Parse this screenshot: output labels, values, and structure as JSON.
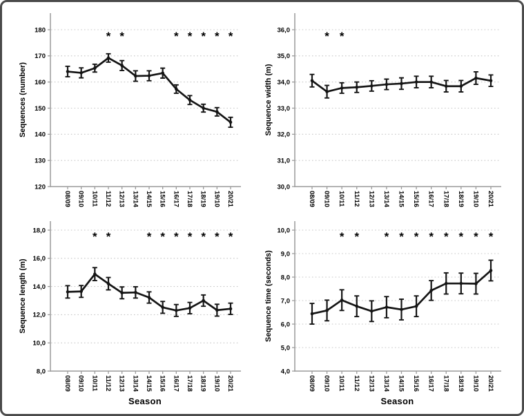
{
  "figure": {
    "significance_marker": "*",
    "colors": {
      "data_line": "#141414",
      "marker": "#141414",
      "error_bar": "#141414",
      "gridline": "#c6c6c6",
      "axis": "#9a9a9a",
      "text": "#000000",
      "figure_border": "#4a4a4a",
      "background": "#ffffff"
    }
  },
  "chart_data": [
    {
      "type": "line",
      "title": "",
      "ylabel": "Sequences (number)",
      "xlabel": "",
      "legend": "none",
      "grid": "horizontal-dotted",
      "marker": "circle-with-error-bars",
      "categories": [
        "08/09",
        "09/10",
        "10/11",
        "11/12",
        "12/13",
        "13/14",
        "14/15",
        "15/16",
        "16/17",
        "17/18",
        "18/19",
        "19/10",
        "20/21"
      ],
      "values": [
        164.0,
        163.5,
        165.3,
        169.2,
        166.3,
        162.3,
        162.4,
        163.4,
        157.3,
        153.1,
        150.0,
        148.6,
        144.6
      ],
      "errors": [
        2.0,
        1.9,
        1.5,
        1.6,
        1.9,
        2.0,
        1.9,
        1.9,
        1.6,
        1.7,
        1.5,
        1.6,
        1.9
      ],
      "ylim": [
        120,
        180
      ],
      "yticks": [
        120,
        130,
        140,
        150,
        160,
        170,
        180
      ],
      "ytick_labels": [
        "120",
        "130",
        "140",
        "150",
        "160",
        "170",
        "180"
      ],
      "significant_categories": [
        "11/12",
        "12/13",
        "16/17",
        "17/18",
        "18/19",
        "19/10",
        "20/21"
      ]
    },
    {
      "type": "line",
      "title": "",
      "ylabel": "Sequence width (m)",
      "xlabel": "",
      "legend": "none",
      "grid": "horizontal-dotted",
      "marker": "circle-with-error-bars",
      "categories": [
        "08/09",
        "09/10",
        "10/11",
        "11/12",
        "12/13",
        "13/14",
        "14/15",
        "15/16",
        "16/17",
        "17/18",
        "18/19",
        "19/10",
        "20/21"
      ],
      "values": [
        34.05,
        33.63,
        33.77,
        33.8,
        33.85,
        33.91,
        33.94,
        34.0,
        34.0,
        33.84,
        33.84,
        34.15,
        34.05
      ],
      "errors": [
        0.24,
        0.24,
        0.2,
        0.2,
        0.2,
        0.2,
        0.22,
        0.22,
        0.22,
        0.22,
        0.22,
        0.24,
        0.22
      ],
      "ylim": [
        30.0,
        36.0
      ],
      "yticks": [
        30,
        31,
        32,
        33,
        34,
        35,
        36
      ],
      "ytick_labels": [
        "30,0",
        "31,0",
        "32,0",
        "33,0",
        "34,0",
        "35,0",
        "36,0"
      ],
      "significant_categories": [
        "09/10",
        "10/11"
      ]
    },
    {
      "type": "line",
      "title": "",
      "ylabel": "Sequence length (m)",
      "xlabel": "Season",
      "legend": "none",
      "grid": "horizontal-dotted",
      "marker": "circle-with-error-bars",
      "categories": [
        "08/09",
        "09/10",
        "10/11",
        "11/12",
        "12/13",
        "13/14",
        "14/15",
        "15/16",
        "16/17",
        "17/18",
        "18/19",
        "19/10",
        "20/21"
      ],
      "values": [
        13.62,
        13.65,
        14.88,
        14.2,
        13.55,
        13.58,
        13.22,
        12.52,
        12.3,
        12.47,
        13.0,
        12.32,
        12.42
      ],
      "errors": [
        0.44,
        0.42,
        0.46,
        0.44,
        0.42,
        0.4,
        0.4,
        0.42,
        0.42,
        0.4,
        0.4,
        0.42,
        0.4
      ],
      "ylim": [
        8.0,
        18.0
      ],
      "yticks": [
        8,
        10,
        12,
        14,
        16,
        18
      ],
      "ytick_labels": [
        "8,0",
        "10,0",
        "12,0",
        "14,0",
        "16,0",
        "18,0"
      ],
      "significant_categories": [
        "10/11",
        "11/12",
        "14/15",
        "15/16",
        "16/17",
        "17/18",
        "18/19",
        "19/10",
        "20/21"
      ]
    },
    {
      "type": "line",
      "title": "",
      "ylabel": "Sequence time (seconds)",
      "xlabel": "Season",
      "legend": "none",
      "grid": "horizontal-dotted",
      "marker": "circle-with-error-bars",
      "categories": [
        "08/09",
        "09/10",
        "10/11",
        "11/12",
        "12/13",
        "13/14",
        "14/15",
        "15/16",
        "16/17",
        "17/18",
        "18/19",
        "19/10",
        "20/21"
      ],
      "values": [
        6.44,
        6.58,
        7.02,
        6.76,
        6.55,
        6.72,
        6.62,
        6.76,
        7.43,
        7.73,
        7.73,
        7.72,
        8.28
      ],
      "errors": [
        0.44,
        0.44,
        0.44,
        0.44,
        0.44,
        0.45,
        0.44,
        0.44,
        0.42,
        0.45,
        0.44,
        0.44,
        0.44
      ],
      "ylim": [
        4.0,
        10.0
      ],
      "yticks": [
        4,
        5,
        6,
        7,
        8,
        9,
        10
      ],
      "ytick_labels": [
        "4,0",
        "5,0",
        "6,0",
        "7,0",
        "8,0",
        "9,0",
        "10,0"
      ],
      "significant_categories": [
        "10/11",
        "11/12",
        "13/14",
        "14/15",
        "15/16",
        "16/17",
        "17/18",
        "18/19",
        "19/10",
        "20/21"
      ]
    }
  ]
}
